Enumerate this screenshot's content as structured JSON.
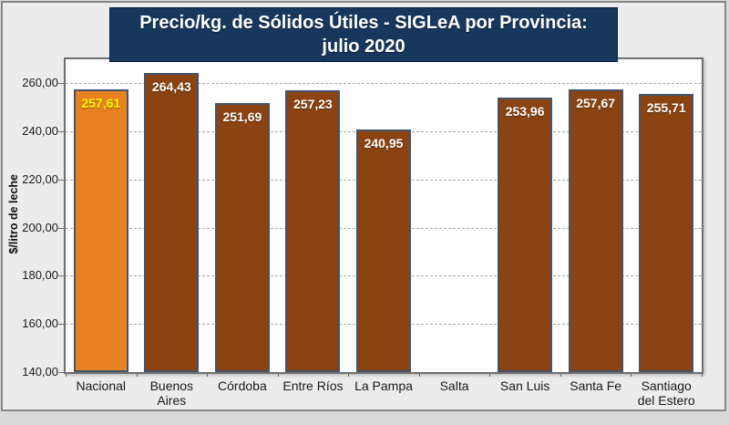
{
  "figure": {
    "title_line1": "Precio/kg. de Sólidos Útiles - SIGLeA por Provincia:",
    "title_line2": "julio 2020"
  },
  "chart_data": {
    "type": "bar",
    "title": "Precio/kg. de Sólidos Útiles - SIGLeA por Provincia: julio 2020",
    "xlabel": "",
    "ylabel": "$/litro de leche",
    "ylim": [
      140,
      270
    ],
    "ytick_step": 20,
    "yticks": [
      {
        "value": 140,
        "label": "140,00"
      },
      {
        "value": 160,
        "label": "160,00"
      },
      {
        "value": 180,
        "label": "180,00"
      },
      {
        "value": 200,
        "label": "200,00"
      },
      {
        "value": 220,
        "label": "220,00"
      },
      {
        "value": 240,
        "label": "240,00"
      },
      {
        "value": 260,
        "label": "260,00"
      }
    ],
    "categories": [
      "Nacional",
      "Buenos Aires",
      "Córdoba",
      "Entre Ríos",
      "La Pampa",
      "Salta",
      "San Luis",
      "Santa Fe",
      "Santiago del Estero"
    ],
    "values": [
      257.61,
      264.43,
      251.69,
      257.23,
      240.95,
      null,
      253.96,
      257.67,
      255.71
    ],
    "value_labels": [
      "257,61",
      "264,43",
      "251,69",
      "257,23",
      "240,95",
      "",
      "253,96",
      "257,67",
      "255,71"
    ],
    "highlight_index": 0,
    "grid": "horizontal-dashed",
    "legend": "none",
    "colors": {
      "figure_bg": "#ececec",
      "plot_bg": "#ffffff",
      "plot_border": "#6f6f6f",
      "gridline": "#a8a8a8",
      "title_bg": "#17375d",
      "title_text": "#ffffff",
      "bar_fill": "#8a4311",
      "bar_highlight_fill": "#e8811f",
      "bar_border": "#44546a",
      "value_label_text": "#ffffff",
      "value_label_highlight_text": "#ffff00",
      "axis_text": "#1a1a1a"
    }
  }
}
